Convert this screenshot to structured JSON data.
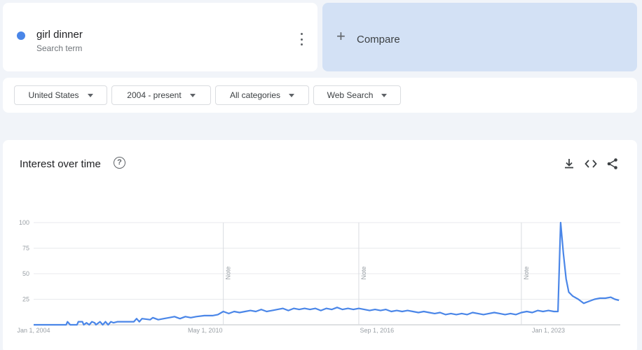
{
  "search_term": {
    "name": "girl dinner",
    "type": "Search term",
    "dot_color": "#4a86e8"
  },
  "compare": {
    "label": "Compare"
  },
  "filters": {
    "region": "United States",
    "time_range": "2004 - present",
    "category": "All categories",
    "search_type": "Web Search"
  },
  "chart_header": {
    "title": "Interest over time",
    "icons": [
      "help-icon",
      "download-icon",
      "embed-icon",
      "share-icon"
    ]
  },
  "chart_data": {
    "type": "line",
    "title": "",
    "xlabel": "",
    "ylabel": "",
    "ylim": [
      0,
      100
    ],
    "y_ticks": [
      100,
      75,
      50,
      25
    ],
    "grid": true,
    "x_ticks": [
      "Jan 1, 2004",
      "May 1, 2010",
      "Sep 1, 2016",
      "Jan 1, 2023"
    ],
    "x_tick_years": [
      2004.0,
      2010.33,
      2016.67,
      2023.0
    ],
    "x_range": [
      2004.0,
      2025.65
    ],
    "notes": [
      {
        "label": "Note",
        "x": 2011.0
      },
      {
        "label": "Note",
        "x": 2016.0
      },
      {
        "label": "Note",
        "x": 2022.0
      }
    ],
    "series": [
      {
        "color": "#4a86e8",
        "points": [
          [
            2004.0,
            0
          ],
          [
            2005.2,
            0
          ],
          [
            2005.25,
            3
          ],
          [
            2005.35,
            0
          ],
          [
            2005.6,
            0
          ],
          [
            2005.65,
            3
          ],
          [
            2005.8,
            3
          ],
          [
            2005.85,
            0
          ],
          [
            2005.95,
            2
          ],
          [
            2006.05,
            0
          ],
          [
            2006.15,
            3
          ],
          [
            2006.25,
            2
          ],
          [
            2006.3,
            0
          ],
          [
            2006.45,
            3
          ],
          [
            2006.55,
            0
          ],
          [
            2006.65,
            3
          ],
          [
            2006.75,
            0
          ],
          [
            2006.85,
            3
          ],
          [
            2006.95,
            2
          ],
          [
            2007.1,
            3
          ],
          [
            2007.5,
            3
          ],
          [
            2007.7,
            3
          ],
          [
            2007.8,
            6
          ],
          [
            2007.9,
            3
          ],
          [
            2008.0,
            6
          ],
          [
            2008.3,
            5
          ],
          [
            2008.4,
            7
          ],
          [
            2008.6,
            5
          ],
          [
            2008.8,
            6
          ],
          [
            2009.0,
            7
          ],
          [
            2009.2,
            8
          ],
          [
            2009.4,
            6
          ],
          [
            2009.6,
            8
          ],
          [
            2009.8,
            7
          ],
          [
            2010.0,
            8
          ],
          [
            2010.3,
            9
          ],
          [
            2010.6,
            9
          ],
          [
            2010.8,
            10
          ],
          [
            2011.0,
            13
          ],
          [
            2011.2,
            11
          ],
          [
            2011.4,
            13
          ],
          [
            2011.6,
            12
          ],
          [
            2011.8,
            13
          ],
          [
            2012.0,
            14
          ],
          [
            2012.2,
            13
          ],
          [
            2012.4,
            15
          ],
          [
            2012.6,
            13
          ],
          [
            2012.8,
            14
          ],
          [
            2013.0,
            15
          ],
          [
            2013.2,
            16
          ],
          [
            2013.4,
            14
          ],
          [
            2013.6,
            16
          ],
          [
            2013.8,
            15
          ],
          [
            2014.0,
            16
          ],
          [
            2014.2,
            15
          ],
          [
            2014.4,
            16
          ],
          [
            2014.6,
            14
          ],
          [
            2014.8,
            16
          ],
          [
            2015.0,
            15
          ],
          [
            2015.2,
            17
          ],
          [
            2015.4,
            15
          ],
          [
            2015.6,
            16
          ],
          [
            2015.8,
            15
          ],
          [
            2016.0,
            16
          ],
          [
            2016.2,
            15
          ],
          [
            2016.4,
            14
          ],
          [
            2016.6,
            15
          ],
          [
            2016.8,
            14
          ],
          [
            2017.0,
            15
          ],
          [
            2017.2,
            13
          ],
          [
            2017.4,
            14
          ],
          [
            2017.6,
            13
          ],
          [
            2017.8,
            14
          ],
          [
            2018.0,
            13
          ],
          [
            2018.2,
            12
          ],
          [
            2018.4,
            13
          ],
          [
            2018.6,
            12
          ],
          [
            2018.8,
            11
          ],
          [
            2019.0,
            12
          ],
          [
            2019.2,
            10
          ],
          [
            2019.4,
            11
          ],
          [
            2019.6,
            10
          ],
          [
            2019.8,
            11
          ],
          [
            2020.0,
            10
          ],
          [
            2020.2,
            12
          ],
          [
            2020.4,
            11
          ],
          [
            2020.6,
            10
          ],
          [
            2020.8,
            11
          ],
          [
            2021.0,
            12
          ],
          [
            2021.2,
            11
          ],
          [
            2021.4,
            10
          ],
          [
            2021.6,
            11
          ],
          [
            2021.8,
            10
          ],
          [
            2022.0,
            12
          ],
          [
            2022.2,
            13
          ],
          [
            2022.4,
            12
          ],
          [
            2022.6,
            14
          ],
          [
            2022.8,
            13
          ],
          [
            2023.0,
            14
          ],
          [
            2023.2,
            13
          ],
          [
            2023.35,
            13
          ],
          [
            2023.45,
            100
          ],
          [
            2023.55,
            70
          ],
          [
            2023.65,
            45
          ],
          [
            2023.75,
            32
          ],
          [
            2023.9,
            28
          ],
          [
            2024.1,
            25
          ],
          [
            2024.3,
            21
          ],
          [
            2024.5,
            23
          ],
          [
            2024.7,
            25
          ],
          [
            2024.9,
            26
          ],
          [
            2025.1,
            26
          ],
          [
            2025.3,
            27
          ],
          [
            2025.45,
            25
          ],
          [
            2025.6,
            24
          ]
        ]
      }
    ]
  }
}
